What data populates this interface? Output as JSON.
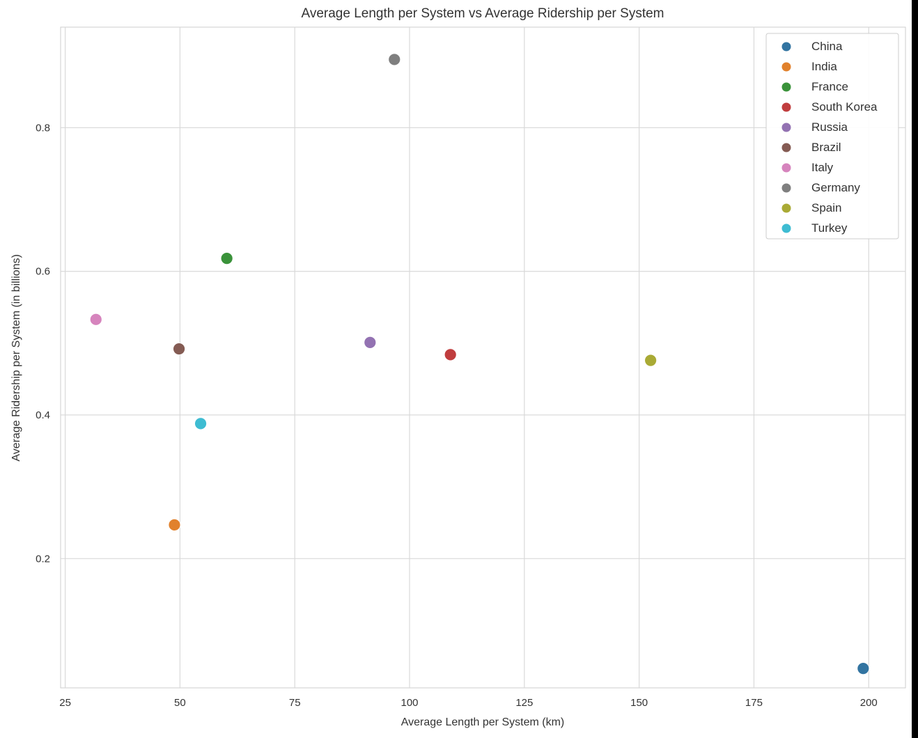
{
  "chart_data": {
    "type": "scatter",
    "title": "Average Length per System vs Average Ridership per System",
    "xlabel": "Average Length per System (km)",
    "ylabel": "Average Ridership per System (in billions)",
    "xlim": [
      24,
      208
    ],
    "ylim": [
      0.02,
      0.94
    ],
    "x_ticks": [
      25,
      50,
      75,
      100,
      125,
      150,
      175,
      200
    ],
    "y_ticks": [
      0.2,
      0.4,
      0.6,
      0.8
    ],
    "x_tick_labels": [
      "25",
      "50",
      "75",
      "100",
      "125",
      "150",
      "175",
      "200"
    ],
    "y_tick_labels": [
      "0.2",
      "0.4",
      "0.6",
      "0.8"
    ],
    "grid": true,
    "legend_position": "top-right",
    "series": [
      {
        "name": "China",
        "color": "#3274a1",
        "x": 198.8,
        "y": 0.047
      },
      {
        "name": "India",
        "color": "#e1812c",
        "x": 48.8,
        "y": 0.247
      },
      {
        "name": "France",
        "color": "#3a923a",
        "x": 60.2,
        "y": 0.618
      },
      {
        "name": "South Korea",
        "color": "#c03d3e",
        "x": 108.9,
        "y": 0.484
      },
      {
        "name": "Russia",
        "color": "#9372b2",
        "x": 91.4,
        "y": 0.501
      },
      {
        "name": "Brazil",
        "color": "#845b53",
        "x": 49.8,
        "y": 0.492
      },
      {
        "name": "Italy",
        "color": "#d684bd",
        "x": 31.7,
        "y": 0.533
      },
      {
        "name": "Germany",
        "color": "#7f7f7f",
        "x": 96.7,
        "y": 0.895
      },
      {
        "name": "Spain",
        "color": "#a9aa35",
        "x": 152.5,
        "y": 0.476
      },
      {
        "name": "Turkey",
        "color": "#3ebcd2",
        "x": 54.5,
        "y": 0.388
      }
    ]
  }
}
